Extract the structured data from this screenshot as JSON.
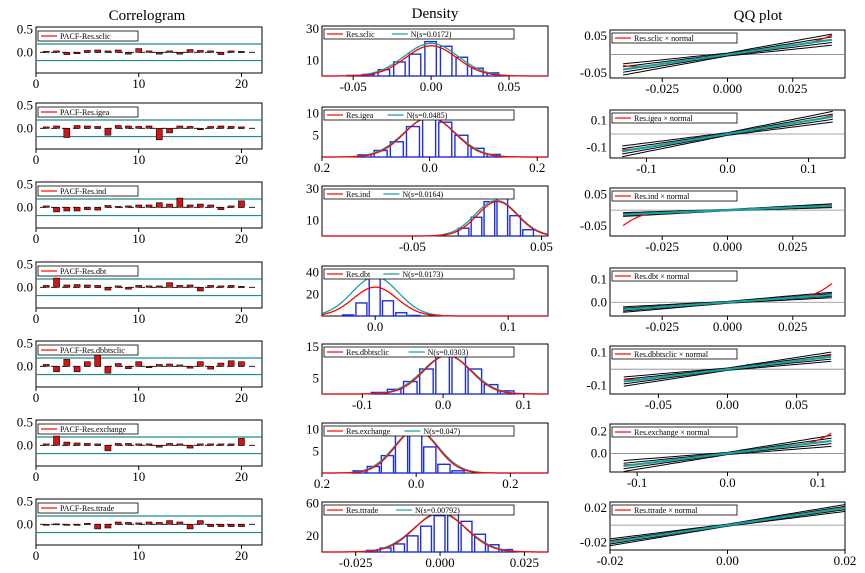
{
  "column_titles": [
    "Correlogram",
    "Density",
    "QQ plot"
  ],
  "colors": {
    "acf_bar": "#d11414",
    "teal": "#1e8c8c",
    "hist_blue": "#1f2fd6",
    "density_red": "#ff0000",
    "normal_teal": "#1aa0a0",
    "qq_band": "#000000",
    "qq_red": "#ff0000"
  },
  "chart_data": [
    {
      "type": "bar",
      "panel": "correlogram",
      "row": 0,
      "legend": "PACF-Res.sclic",
      "x": [
        1,
        2,
        3,
        4,
        5,
        6,
        7,
        8,
        9,
        10,
        11,
        12,
        13,
        14,
        15,
        16,
        17,
        18,
        19,
        20
      ],
      "values": [
        0.02,
        0.03,
        -0.05,
        -0.03,
        0.04,
        0.05,
        0.03,
        0.05,
        -0.04,
        0.08,
        0.03,
        -0.04,
        0.03,
        -0.04,
        0.06,
        0.04,
        0.03,
        -0.05,
        0.03,
        0.02
      ],
      "ylim": [
        -0.45,
        0.55
      ],
      "xlim": [
        0,
        22
      ],
      "yticks": [
        "0.5",
        "0.0"
      ],
      "xticks": [
        "0",
        "10",
        "20"
      ],
      "bands": [
        0.18,
        -0.18
      ]
    },
    {
      "type": "bar",
      "panel": "correlogram",
      "row": 1,
      "legend": "PACF-Res.igea",
      "x": [
        1,
        2,
        3,
        4,
        5,
        6,
        7,
        8,
        9,
        10,
        11,
        12,
        13,
        14,
        15,
        16,
        17,
        18,
        19,
        20
      ],
      "values": [
        0.03,
        0.05,
        -0.2,
        0.06,
        0.05,
        0.04,
        -0.15,
        0.06,
        0.05,
        0.04,
        0.05,
        -0.25,
        -0.1,
        0.05,
        0.04,
        -0.03,
        0.04,
        0.05,
        0.04,
        0.03
      ],
      "ylim": [
        -0.45,
        0.55
      ],
      "xlim": [
        0,
        22
      ],
      "yticks": [
        "0.5",
        "0.0"
      ],
      "xticks": [
        "0",
        "10",
        "20"
      ],
      "bands": [
        0.18,
        -0.18
      ]
    },
    {
      "type": "bar",
      "panel": "correlogram",
      "row": 2,
      "legend": "PACF-Res.ind",
      "x": [
        1,
        2,
        3,
        4,
        5,
        6,
        7,
        8,
        9,
        10,
        11,
        12,
        13,
        14,
        15,
        16,
        17,
        18,
        19,
        20
      ],
      "values": [
        0.03,
        -0.1,
        -0.08,
        -0.08,
        -0.05,
        -0.06,
        0.04,
        0.02,
        0.03,
        0.05,
        0.05,
        0.1,
        0.07,
        0.2,
        0.05,
        0.07,
        0.05,
        -0.05,
        0.03,
        0.14
      ],
      "ylim": [
        -0.45,
        0.55
      ],
      "xlim": [
        0,
        22
      ],
      "yticks": [
        "0.5",
        "0.0"
      ],
      "xticks": [
        "0",
        "10",
        "20"
      ],
      "bands": [
        0.18,
        -0.18
      ]
    },
    {
      "type": "bar",
      "panel": "correlogram",
      "row": 3,
      "legend": "PACF-Res.dbt",
      "x": [
        1,
        2,
        3,
        4,
        5,
        6,
        7,
        8,
        9,
        10,
        11,
        12,
        13,
        14,
        15,
        16,
        17,
        18,
        19,
        20
      ],
      "values": [
        0.04,
        0.2,
        0.05,
        0.06,
        0.05,
        0.04,
        -0.06,
        0.03,
        -0.04,
        0.04,
        0.03,
        0.03,
        0.1,
        0.04,
        0.05,
        -0.08,
        0.04,
        0.03,
        0.04,
        0.02
      ],
      "ylim": [
        -0.45,
        0.55
      ],
      "xlim": [
        0,
        22
      ],
      "yticks": [
        "0.5",
        "0.0"
      ],
      "xticks": [
        "0",
        "10",
        "20"
      ],
      "bands": [
        0.18,
        -0.18
      ]
    },
    {
      "type": "bar",
      "panel": "correlogram",
      "row": 4,
      "legend": "PACF-Res.dbbtsclic",
      "x": [
        1,
        2,
        3,
        4,
        5,
        6,
        7,
        8,
        9,
        10,
        11,
        12,
        13,
        14,
        15,
        16,
        17,
        18,
        19,
        20
      ],
      "values": [
        0.04,
        -0.12,
        0.15,
        -0.12,
        0.1,
        0.35,
        -0.15,
        0.06,
        -0.05,
        0.1,
        -0.03,
        0.04,
        0.05,
        0.03,
        -0.04,
        0.1,
        -0.06,
        0.07,
        0.12,
        0.1
      ],
      "ylim": [
        -0.45,
        0.55
      ],
      "xlim": [
        0,
        22
      ],
      "yticks": [
        "0.5",
        "0.0"
      ],
      "xticks": [
        "0",
        "10",
        "20"
      ],
      "bands": [
        0.18,
        -0.18
      ]
    },
    {
      "type": "bar",
      "panel": "correlogram",
      "row": 5,
      "legend": "PACF-Res.exchange",
      "x": [
        1,
        2,
        3,
        4,
        5,
        6,
        7,
        8,
        9,
        10,
        11,
        12,
        13,
        14,
        15,
        16,
        17,
        18,
        19,
        20
      ],
      "values": [
        0.03,
        0.2,
        0.07,
        0.05,
        0.04,
        0.03,
        -0.12,
        0.04,
        0.04,
        0.03,
        0.03,
        -0.04,
        0.04,
        0.03,
        -0.06,
        0.03,
        0.03,
        0.03,
        0.03,
        0.15
      ],
      "ylim": [
        -0.45,
        0.55
      ],
      "xlim": [
        0,
        22
      ],
      "yticks": [
        "0.5",
        "0.0"
      ],
      "xticks": [
        "0",
        "10",
        "20"
      ],
      "bands": [
        0.18,
        -0.18
      ]
    },
    {
      "type": "bar",
      "panel": "correlogram",
      "row": 6,
      "legend": "PACF-Res.ttrade",
      "x": [
        1,
        2,
        3,
        4,
        5,
        6,
        7,
        8,
        9,
        10,
        11,
        12,
        13,
        14,
        15,
        16,
        17,
        18,
        19,
        20
      ],
      "values": [
        0.0,
        0.01,
        0.0,
        -0.01,
        0.02,
        -0.1,
        -0.08,
        0.05,
        0.04,
        0.03,
        0.05,
        0.04,
        0.08,
        0.05,
        -0.1,
        0.08,
        -0.05,
        -0.05,
        -0.05,
        -0.05
      ],
      "ylim": [
        -0.45,
        0.55
      ],
      "xlim": [
        0,
        22
      ],
      "yticks": [
        "0.5",
        "0.0"
      ],
      "xticks": [
        "0",
        "10",
        "20"
      ],
      "bands": [
        0.18,
        -0.18
      ]
    },
    {
      "type": "bar",
      "panel": "density",
      "row": 0,
      "legend": [
        "Res.sclic",
        "N(s=0.0172)"
      ],
      "xlim": [
        -0.07,
        0.075
      ],
      "ylim": [
        0,
        32
      ],
      "yticks": [
        {
          "v": 30,
          "t": "30"
        },
        {
          "v": 10,
          "t": "10"
        }
      ],
      "xticks": [
        {
          "v": -0.05,
          "t": "-0.05"
        },
        {
          "v": 0.0,
          "t": "0.00"
        },
        {
          "v": 0.05,
          "t": "0.05"
        }
      ],
      "hist_x": [
        -0.05,
        -0.04,
        -0.03,
        -0.02,
        -0.01,
        0.0,
        0.01,
        0.02,
        0.03,
        0.04
      ],
      "hist_values": [
        0.4,
        1,
        4,
        9,
        14,
        22,
        19,
        12,
        5,
        2
      ],
      "bin_width": 0.008,
      "normal": {
        "mean": 0.0,
        "sd": 0.0172
      },
      "density_scale": 0.88
    },
    {
      "type": "bar",
      "panel": "density",
      "row": 1,
      "legend": [
        "Res.igea",
        "N(s=0.0485)"
      ],
      "xlim": [
        -0.2,
        0.22
      ],
      "ylim": [
        0,
        11.5
      ],
      "yticks": [
        {
          "v": 10,
          "t": "10"
        },
        {
          "v": 5,
          "t": "5"
        }
      ],
      "xticks": [
        {
          "v": -0.2,
          "t": "0.2"
        },
        {
          "v": 0.0,
          "t": "0.0"
        },
        {
          "v": 0.2,
          "t": "0.2"
        }
      ],
      "hist_x": [
        -0.12,
        -0.09,
        -0.06,
        -0.03,
        0.0,
        0.03,
        0.06,
        0.09,
        0.12
      ],
      "hist_values": [
        0.5,
        1.5,
        3.5,
        7,
        9.5,
        8,
        5,
        2,
        0.6
      ],
      "bin_width": 0.026,
      "normal": {
        "mean": 0.0,
        "sd": 0.0485
      },
      "density_scale": 0.97
    },
    {
      "type": "bar",
      "panel": "density",
      "row": 2,
      "legend": [
        "Res.ind",
        "N(s=0.0164)"
      ],
      "xlim": [
        -0.12,
        0.055
      ],
      "ylim": [
        0,
        32
      ],
      "yticks": [
        {
          "v": 30,
          "t": "30"
        },
        {
          "v": 10,
          "t": "10"
        }
      ],
      "xticks": [
        {
          "v": -0.05,
          "t": "-0.05"
        },
        {
          "v": 0.05,
          "t": "0.05"
        }
      ],
      "hist_x": [
        -0.01,
        0.0,
        0.01,
        0.02,
        0.03,
        0.04
      ],
      "hist_values": [
        5,
        12,
        22,
        24,
        13,
        4
      ],
      "bin_width": 0.009,
      "normal": {
        "mean": 0.015,
        "sd": 0.0164
      },
      "density_scale": 0.92
    },
    {
      "type": "bar",
      "panel": "density",
      "row": 3,
      "legend": [
        "Res.dbt",
        "N(s=0.0173)"
      ],
      "xlim": [
        -0.04,
        0.13
      ],
      "ylim": [
        0,
        46
      ],
      "yticks": [
        {
          "v": 40,
          "t": "40"
        },
        {
          "v": 20,
          "t": "20"
        }
      ],
      "xticks": [
        {
          "v": 0.0,
          "t": "0.0"
        },
        {
          "v": 0.1,
          "t": "0.1"
        }
      ],
      "hist_x": [
        -0.02,
        -0.01,
        0.0,
        0.01,
        0.02,
        0.03
      ],
      "hist_values": [
        1,
        12,
        38,
        14,
        3,
        0.5
      ],
      "bin_width": 0.009,
      "normal": {
        "mean": 0.0,
        "sd": 0.0173
      },
      "density_scale": 0.7
    },
    {
      "type": "bar",
      "panel": "density",
      "row": 4,
      "legend": [
        "Res.dbbtsclic",
        "N(s=0.0303)"
      ],
      "xlim": [
        -0.15,
        0.13
      ],
      "ylim": [
        0,
        16
      ],
      "yticks": [
        {
          "v": 15,
          "t": "15"
        },
        {
          "v": 5,
          "t": "5"
        }
      ],
      "xticks": [
        {
          "v": -0.1,
          "t": "-0.1"
        },
        {
          "v": 0.0,
          "t": "0.0"
        },
        {
          "v": 0.1,
          "t": "0.1"
        }
      ],
      "hist_x": [
        -0.08,
        -0.06,
        -0.04,
        -0.02,
        0.0,
        0.02,
        0.04,
        0.06,
        0.08
      ],
      "hist_values": [
        0.5,
        1.5,
        4,
        8,
        12,
        13,
        8,
        3,
        1
      ],
      "bin_width": 0.018,
      "normal": {
        "mean": 0.005,
        "sd": 0.0303
      },
      "density_scale": 0.95
    },
    {
      "type": "bar",
      "panel": "density",
      "row": 5,
      "legend": [
        "Res.exchange",
        "N(s=0.047)"
      ],
      "xlim": [
        -0.2,
        0.28
      ],
      "ylim": [
        0,
        11.5
      ],
      "yticks": [
        {
          "v": 10,
          "t": "10"
        },
        {
          "v": 5,
          "t": "5"
        }
      ],
      "xticks": [
        {
          "v": -0.2,
          "t": "0.2"
        },
        {
          "v": 0.0,
          "t": "0.0"
        },
        {
          "v": 0.2,
          "t": "0.2"
        }
      ],
      "hist_x": [
        -0.12,
        -0.09,
        -0.06,
        -0.03,
        0.0,
        0.03,
        0.06,
        0.09
      ],
      "hist_values": [
        0.5,
        1.5,
        4,
        9,
        10.5,
        6,
        2,
        0.5
      ],
      "bin_width": 0.028,
      "normal": {
        "mean": 0.0,
        "sd": 0.047
      },
      "density_scale": 0.95
    },
    {
      "type": "bar",
      "panel": "density",
      "row": 6,
      "legend": [
        "Res.ttrade",
        "N(s=0.00792)"
      ],
      "xlim": [
        -0.035,
        0.032
      ],
      "ylim": [
        0,
        62
      ],
      "yticks": [
        {
          "v": 60,
          "t": "60"
        },
        {
          "v": 20,
          "t": "20"
        }
      ],
      "xticks": [
        {
          "v": -0.025,
          "t": "-0.025"
        },
        {
          "v": 0.0,
          "t": "0.000"
        },
        {
          "v": 0.025,
          "t": "0.025"
        }
      ],
      "hist_x": [
        -0.02,
        -0.016,
        -0.012,
        -0.008,
        -0.004,
        0.0,
        0.004,
        0.008,
        0.012,
        0.016,
        0.02
      ],
      "hist_values": [
        2,
        5,
        10,
        20,
        32,
        45,
        50,
        38,
        22,
        9,
        3
      ],
      "bin_width": 0.0035,
      "normal": {
        "mean": 0.0,
        "sd": 0.00792
      },
      "density_scale": 0.98
    },
    {
      "type": "line",
      "panel": "qq",
      "row": 0,
      "legend": "Res.sclic × normal",
      "xlim": [
        -0.045,
        0.045
      ],
      "ylim": [
        -0.063,
        0.066
      ],
      "yticks": [
        {
          "v": 0.05,
          "t": "0.05"
        },
        {
          "v": -0.05,
          "t": "-0.05"
        }
      ],
      "xticks": [
        {
          "v": -0.025,
          "t": "-0.025"
        },
        {
          "v": 0.0,
          "t": "0.000"
        },
        {
          "v": 0.025,
          "t": "0.025"
        }
      ],
      "slope": 1.0,
      "intercept": 0.0,
      "band_x": [
        -0.04,
        0.04
      ],
      "band_spread": [
        0.015,
        0.004,
        0.015
      ],
      "qq_tail": [
        0.01,
        0.012
      ]
    },
    {
      "type": "line",
      "panel": "qq",
      "row": 1,
      "legend": "Res.igea × normal",
      "xlim": [
        -0.145,
        0.145
      ],
      "ylim": [
        -0.18,
        0.18
      ],
      "yticks": [
        {
          "v": 0.1,
          "t": "0.1"
        },
        {
          "v": -0.1,
          "t": "-0.1"
        }
      ],
      "xticks": [
        {
          "v": -0.1,
          "t": "-0.1"
        },
        {
          "v": 0.0,
          "t": "0.0"
        },
        {
          "v": 0.1,
          "t": "0.1"
        }
      ],
      "slope": 1.0,
      "intercept": 0.0,
      "band_x": [
        -0.13,
        0.13
      ],
      "band_spread": [
        0.04,
        0.01,
        0.04
      ],
      "qq_tail": [
        0.01,
        0.01
      ]
    },
    {
      "type": "line",
      "panel": "qq",
      "row": 2,
      "legend": "Res.ind × normal",
      "xlim": [
        -0.045,
        0.045
      ],
      "ylim": [
        -0.082,
        0.07
      ],
      "yticks": [
        {
          "v": 0.05,
          "t": "0.05"
        },
        {
          "v": -0.05,
          "t": "-0.05"
        }
      ],
      "xticks": [
        {
          "v": -0.025,
          "t": "-0.025"
        },
        {
          "v": 0.0,
          "t": "0.000"
        },
        {
          "v": 0.025,
          "t": "0.025"
        }
      ],
      "slope": 0.35,
      "intercept": 0.0,
      "band_x": [
        -0.04,
        0.04
      ],
      "band_spread": [
        0.006,
        0.002,
        0.006
      ],
      "qq_tail": [
        -0.035,
        0.003
      ]
    },
    {
      "type": "line",
      "panel": "qq",
      "row": 3,
      "legend": "Res.dbt × normal",
      "xlim": [
        -0.045,
        0.045
      ],
      "ylim": [
        -0.06,
        0.15
      ],
      "yticks": [
        {
          "v": 0.1,
          "t": "0.1"
        },
        {
          "v": 0.0,
          "t": "0.0"
        }
      ],
      "xticks": [
        {
          "v": -0.025,
          "t": "-0.025"
        },
        {
          "v": 0.0,
          "t": "0.000"
        },
        {
          "v": 0.025,
          "t": "0.025"
        }
      ],
      "slope": 0.8,
      "intercept": 0.0,
      "band_x": [
        -0.04,
        0.04
      ],
      "band_spread": [
        0.012,
        0.004,
        0.012
      ],
      "qq_tail": [
        0.003,
        0.05
      ]
    },
    {
      "type": "line",
      "panel": "qq",
      "row": 4,
      "legend": "Res.dbbtsclic × normal",
      "xlim": [
        -0.085,
        0.085
      ],
      "ylim": [
        -0.15,
        0.14
      ],
      "yticks": [
        {
          "v": 0.1,
          "t": "0.1"
        },
        {
          "v": -0.1,
          "t": "-0.1"
        }
      ],
      "xticks": [
        {
          "v": -0.05,
          "t": "-0.05"
        },
        {
          "v": 0.0,
          "t": "0.00"
        },
        {
          "v": 0.05,
          "t": "0.05"
        }
      ],
      "slope": 1.0,
      "intercept": 0.0,
      "band_x": [
        -0.075,
        0.075
      ],
      "band_spread": [
        0.028,
        0.007,
        0.028
      ],
      "qq_tail": [
        0.012,
        0.01
      ]
    },
    {
      "type": "line",
      "panel": "qq",
      "row": 5,
      "legend": "Res.exchange × normal",
      "xlim": [
        -0.13,
        0.13
      ],
      "ylim": [
        -0.17,
        0.27
      ],
      "yticks": [
        {
          "v": 0.2,
          "t": "0.2"
        },
        {
          "v": 0.0,
          "t": "0.0"
        }
      ],
      "xticks": [
        {
          "v": -0.1,
          "t": "-0.1"
        },
        {
          "v": 0.0,
          "t": "0.0"
        },
        {
          "v": 0.1,
          "t": "0.1"
        }
      ],
      "slope": 1.0,
      "intercept": 0.0,
      "band_x": [
        -0.115,
        0.115
      ],
      "band_spread": [
        0.05,
        0.01,
        0.05
      ],
      "qq_tail": [
        0.01,
        0.07
      ]
    },
    {
      "type": "line",
      "panel": "qq",
      "row": 6,
      "legend": "Res.ttrade × normal",
      "xlim": [
        -0.02,
        0.02
      ],
      "ylim": [
        -0.029,
        0.027
      ],
      "yticks": [
        {
          "v": 0.02,
          "t": "0.02"
        },
        {
          "v": -0.02,
          "t": "-0.02"
        }
      ],
      "xticks": [
        {
          "v": -0.02,
          "t": "-0.02"
        },
        {
          "v": 0.0,
          "t": "0.00"
        },
        {
          "v": 0.02,
          "t": "0.02"
        }
      ],
      "slope": 1.0,
      "intercept": 0.0,
      "band_x": [
        -0.02,
        0.02
      ],
      "band_spread": [
        0.004,
        0.0012,
        0.004
      ],
      "qq_tail": [
        0.001,
        0.001
      ]
    }
  ]
}
